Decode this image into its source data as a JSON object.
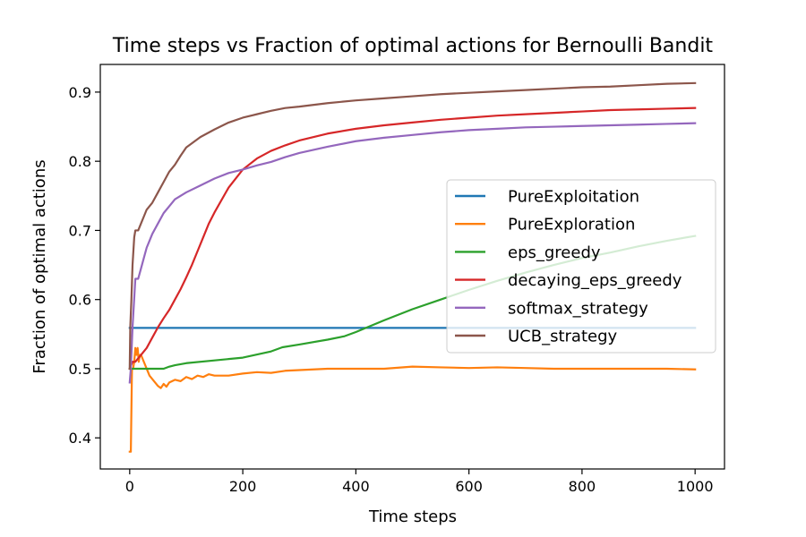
{
  "chart_data": {
    "type": "line",
    "title": "Time steps vs Fraction of optimal actions for Bernoulli Bandit",
    "xlabel": "Time steps",
    "ylabel": "Fraction of optimal actions",
    "xlim": [
      -52,
      1052
    ],
    "ylim": [
      0.355,
      0.94
    ],
    "xticks": [
      0,
      200,
      400,
      600,
      800,
      1000
    ],
    "xtick_labels": [
      "0",
      "200",
      "400",
      "600",
      "800",
      "1000"
    ],
    "yticks": [
      0.4,
      0.5,
      0.6,
      0.7,
      0.8,
      0.9
    ],
    "ytick_labels": [
      "0.4",
      "0.5",
      "0.6",
      "0.7",
      "0.8",
      "0.9"
    ],
    "grid": false,
    "legend_position": "center-right",
    "series": [
      {
        "name": "PureExploitation",
        "color": "#1f77b4",
        "x": [
          0,
          1000
        ],
        "y": [
          0.559,
          0.559
        ]
      },
      {
        "name": "PureExploration",
        "color": "#ff7f0e",
        "x": [
          0,
          2,
          4,
          6,
          8,
          10,
          12,
          14,
          16,
          18,
          20,
          25,
          30,
          35,
          40,
          45,
          50,
          55,
          60,
          65,
          70,
          80,
          90,
          100,
          110,
          120,
          130,
          140,
          150,
          175,
          200,
          225,
          250,
          275,
          300,
          350,
          400,
          450,
          500,
          550,
          600,
          650,
          700,
          750,
          800,
          850,
          900,
          950,
          1000
        ],
        "y": [
          0.38,
          0.38,
          0.5,
          0.5,
          0.51,
          0.53,
          0.52,
          0.53,
          0.51,
          0.52,
          0.52,
          0.51,
          0.5,
          0.49,
          0.485,
          0.48,
          0.475,
          0.472,
          0.478,
          0.474,
          0.48,
          0.484,
          0.482,
          0.488,
          0.485,
          0.49,
          0.488,
          0.492,
          0.49,
          0.49,
          0.493,
          0.495,
          0.494,
          0.497,
          0.498,
          0.5,
          0.5,
          0.5,
          0.503,
          0.502,
          0.501,
          0.502,
          0.501,
          0.5,
          0.5,
          0.5,
          0.5,
          0.5,
          0.499
        ]
      },
      {
        "name": "eps_greedy",
        "color": "#2ca02c",
        "x": [
          0,
          5,
          10,
          20,
          40,
          60,
          70,
          80,
          100,
          150,
          200,
          250,
          270,
          300,
          350,
          380,
          400,
          450,
          500,
          550,
          600,
          650,
          700,
          750,
          800,
          850,
          900,
          950,
          1000
        ],
        "y": [
          0.5,
          0.5,
          0.5,
          0.5,
          0.5,
          0.5,
          0.503,
          0.505,
          0.508,
          0.512,
          0.516,
          0.525,
          0.531,
          0.535,
          0.542,
          0.547,
          0.553,
          0.57,
          0.586,
          0.6,
          0.614,
          0.627,
          0.639,
          0.65,
          0.66,
          0.668,
          0.677,
          0.685,
          0.692
        ]
      },
      {
        "name": "decaying_eps_greedy",
        "color": "#d62728",
        "x": [
          0,
          5,
          10,
          20,
          30,
          40,
          50,
          60,
          70,
          80,
          90,
          100,
          110,
          120,
          130,
          140,
          150,
          175,
          200,
          225,
          250,
          275,
          300,
          350,
          400,
          450,
          500,
          550,
          600,
          650,
          700,
          750,
          800,
          850,
          900,
          950,
          1000
        ],
        "y": [
          0.5,
          0.51,
          0.51,
          0.52,
          0.53,
          0.545,
          0.56,
          0.573,
          0.585,
          0.6,
          0.615,
          0.632,
          0.65,
          0.67,
          0.69,
          0.71,
          0.726,
          0.762,
          0.788,
          0.804,
          0.815,
          0.823,
          0.83,
          0.84,
          0.847,
          0.852,
          0.856,
          0.86,
          0.863,
          0.866,
          0.868,
          0.87,
          0.872,
          0.874,
          0.875,
          0.876,
          0.877
        ]
      },
      {
        "name": "softmax_strategy",
        "color": "#9467bd",
        "x": [
          0,
          2,
          5,
          10,
          15,
          20,
          25,
          30,
          35,
          40,
          50,
          60,
          70,
          80,
          90,
          100,
          125,
          150,
          175,
          200,
          225,
          250,
          275,
          300,
          350,
          400,
          450,
          500,
          550,
          600,
          650,
          700,
          750,
          800,
          850,
          900,
          950,
          1000
        ],
        "y": [
          0.48,
          0.5,
          0.56,
          0.63,
          0.63,
          0.645,
          0.66,
          0.675,
          0.685,
          0.695,
          0.71,
          0.725,
          0.735,
          0.745,
          0.75,
          0.755,
          0.765,
          0.775,
          0.783,
          0.788,
          0.794,
          0.799,
          0.806,
          0.812,
          0.821,
          0.829,
          0.834,
          0.838,
          0.842,
          0.845,
          0.847,
          0.849,
          0.85,
          0.851,
          0.852,
          0.853,
          0.854,
          0.855
        ]
      },
      {
        "name": "UCB_strategy",
        "color": "#8c564b",
        "x": [
          0,
          1,
          3,
          5,
          8,
          10,
          15,
          20,
          25,
          30,
          35,
          40,
          50,
          60,
          70,
          80,
          90,
          100,
          125,
          150,
          175,
          200,
          225,
          250,
          275,
          300,
          350,
          400,
          450,
          500,
          550,
          600,
          650,
          700,
          750,
          800,
          850,
          900,
          950,
          1000
        ],
        "y": [
          0.5,
          0.56,
          0.6,
          0.65,
          0.69,
          0.7,
          0.7,
          0.71,
          0.72,
          0.73,
          0.735,
          0.74,
          0.755,
          0.77,
          0.785,
          0.795,
          0.808,
          0.82,
          0.835,
          0.846,
          0.856,
          0.863,
          0.868,
          0.873,
          0.877,
          0.879,
          0.884,
          0.888,
          0.891,
          0.894,
          0.897,
          0.899,
          0.901,
          0.903,
          0.905,
          0.907,
          0.908,
          0.91,
          0.912,
          0.913
        ]
      }
    ]
  }
}
